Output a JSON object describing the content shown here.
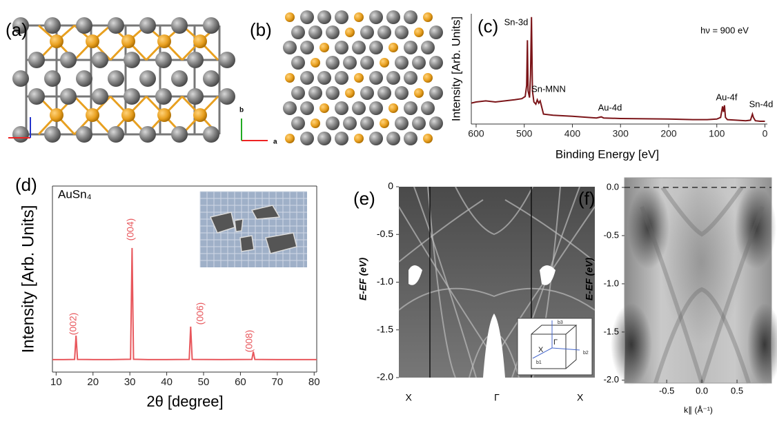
{
  "panels": [
    {
      "label": "(a)"
    },
    {
      "label": "(b)",
      "axis_labels": [
        "b",
        "a"
      ]
    }
  ],
  "chart_data": [
    {
      "type": "line",
      "panel_label": "(c)",
      "xlabel": "Binding Energy [eV]",
      "ylabel": "Intensity [Arb. Units]",
      "color": "#7b1418",
      "x": [
        610,
        600,
        580,
        560,
        540,
        520,
        505,
        498,
        495,
        493.5,
        492,
        489,
        487,
        485,
        483,
        480,
        476,
        473,
        470,
        467,
        464,
        460,
        440,
        400,
        350,
        340,
        335,
        300,
        200,
        150,
        120,
        100,
        92,
        88,
        86,
        84,
        82,
        78,
        60,
        40,
        30,
        26,
        24,
        20,
        10,
        0
      ],
      "values": [
        19,
        20,
        21,
        20,
        21,
        22,
        23,
        25,
        35,
        76,
        30,
        24,
        45,
        97,
        30,
        20,
        18,
        22,
        19,
        21,
        16,
        9,
        8,
        7,
        5.5,
        6.5,
        5.5,
        5,
        4.5,
        4,
        4,
        4.5,
        6,
        16,
        11,
        17,
        6,
        4,
        3.5,
        3,
        3.5,
        9,
        6,
        3,
        2.5,
        2.5
      ],
      "xlim": [
        610,
        -5
      ],
      "xticks": [
        600,
        500,
        400,
        300,
        200,
        100,
        0
      ],
      "ylim": [
        0,
        100
      ],
      "annotations": [
        "Sn-3d",
        "Sn-MNN",
        "Au-4d",
        "Au-4f",
        "Sn-4d",
        "hν = 900 eV"
      ]
    },
    {
      "type": "line",
      "panel_label": "(d)",
      "title": "AuSn₄",
      "xlabel": "2θ [degree]",
      "ylabel": "Intensity [Arb. Units]",
      "color": "#e8575c",
      "x": [
        9,
        12,
        15,
        15.4,
        15.8,
        20,
        25,
        30.2,
        30.6,
        31,
        35,
        40,
        46.1,
        46.5,
        46.9,
        55,
        63.1,
        63.5,
        63.9,
        70,
        80.7
      ],
      "values": [
        6.7,
        6.7,
        6.8,
        19.6,
        6.8,
        6.7,
        6.7,
        6.9,
        66.7,
        6.9,
        6.7,
        6.7,
        6.8,
        24.4,
        6.8,
        6.7,
        6.8,
        11,
        6.8,
        6.7,
        6.7
      ],
      "xlim": [
        9,
        80.7
      ],
      "xticks": [
        10,
        20,
        30,
        40,
        50,
        60,
        70,
        80
      ],
      "ylim": [
        0,
        100
      ],
      "annotations": [
        "(002)",
        "(004)",
        "(006)",
        "(008)"
      ]
    },
    {
      "type": "image",
      "panel_label": "(e)",
      "ylabel": "E-EF (eV)",
      "categories": [
        "X",
        "Γ",
        "X"
      ],
      "ylim": [
        -2.0,
        0
      ],
      "yticks": [
        0,
        {
          "value": -0.5,
          "label": "-0.5"
        },
        {
          "value": -1.0,
          "label": "-1.0"
        },
        {
          "value": -1.5,
          "label": "-1.5"
        },
        {
          "value": -2.0,
          "label": "-2.0"
        }
      ],
      "inset_labels": [
        "X",
        "Γ",
        "b1",
        "b2",
        "b3"
      ]
    },
    {
      "type": "image",
      "panel_label": "(f)",
      "ylabel": "E-EF (eV)",
      "xlabel": "k∥ (Å⁻¹)",
      "xlim": [
        -1.1,
        0.99
      ],
      "xticks": [
        -0.5,
        {
          "value": 0.0,
          "label": "0.0"
        },
        0.5
      ],
      "ylim": [
        -2.03,
        0.1
      ],
      "yticks": [
        {
          "value": 0.0,
          "label": "0.0"
        },
        -0.5,
        {
          "value": -1.0,
          "label": "-1.0"
        },
        -1.5,
        {
          "value": -2.0,
          "label": "-2.0"
        }
      ]
    }
  ]
}
